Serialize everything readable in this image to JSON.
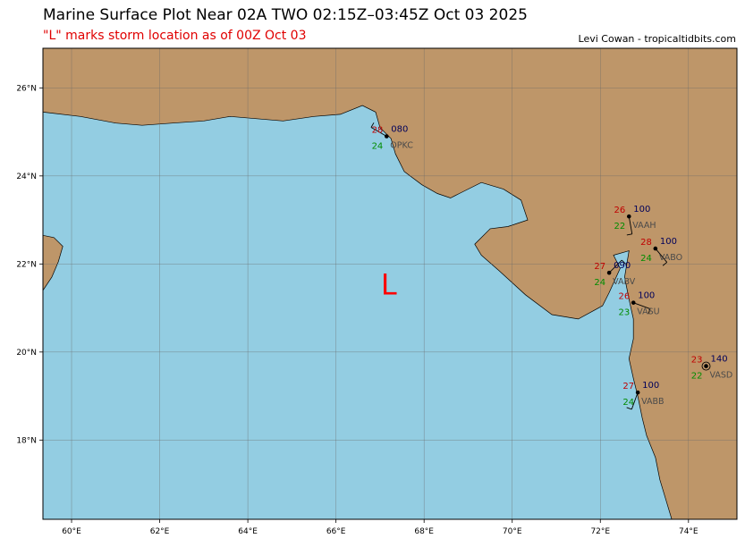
{
  "header": {
    "title": "Marine Surface Plot Near 02A TWO 02:15Z–03:45Z Oct 03 2025",
    "subtitle": "\"L\" marks storm location as of 00Z Oct 03",
    "credit": "Levi Cowan - tropicaltidbits.com"
  },
  "map": {
    "lon_range": [
      59.35,
      75.1
    ],
    "lat_range": [
      16.2,
      26.9
    ],
    "colors": {
      "ocean": "#93cde2",
      "land": "#be9669",
      "grid": "#6a6a6a",
      "temp": "#c00000",
      "dew": "#008c00",
      "pressure": "#00005a"
    },
    "x_ticks": [
      {
        "lon": 60,
        "label": "60°E"
      },
      {
        "lon": 62,
        "label": "62°E"
      },
      {
        "lon": 64,
        "label": "64°E"
      },
      {
        "lon": 66,
        "label": "66°E"
      },
      {
        "lon": 68,
        "label": "68°E"
      },
      {
        "lon": 70,
        "label": "70°E"
      },
      {
        "lon": 72,
        "label": "72°E"
      },
      {
        "lon": 74,
        "label": "74°E"
      }
    ],
    "y_ticks": [
      {
        "lat": 18,
        "label": "18°N"
      },
      {
        "lat": 20,
        "label": "20°N"
      },
      {
        "lat": 22,
        "label": "22°N"
      },
      {
        "lat": 24,
        "label": "24°N"
      },
      {
        "lat": 26,
        "label": "26°N"
      }
    ],
    "storm": {
      "label": "L",
      "lon": 67.2,
      "lat": 21.55,
      "color": "#ff0000"
    },
    "stations": [
      {
        "id": "OPKC",
        "lon": 67.15,
        "lat": 24.9,
        "temp": "28",
        "dew": "24",
        "pressure": "080",
        "wind_dir": 300
      },
      {
        "id": "VAAH",
        "lon": 72.65,
        "lat": 23.08,
        "temp": "26",
        "dew": "22",
        "pressure": "100",
        "wind_dir": 170
      },
      {
        "id": "VABO",
        "lon": 73.25,
        "lat": 22.35,
        "temp": "28",
        "dew": "24",
        "pressure": "100",
        "wind_dir": 140
      },
      {
        "id": "VABV",
        "lon": 72.2,
        "lat": 21.8,
        "temp": "27",
        "dew": "24",
        "pressure": "090",
        "wind_dir": 45
      },
      {
        "id": "VASU",
        "lon": 72.75,
        "lat": 21.12,
        "temp": "26",
        "dew": "23",
        "pressure": "100",
        "wind_dir": 110
      },
      {
        "id": "VASD",
        "lon": 74.4,
        "lat": 19.68,
        "temp": "23",
        "dew": "22",
        "pressure": "140",
        "wind_dir": null
      },
      {
        "id": "VABB",
        "lon": 72.85,
        "lat": 19.08,
        "temp": "27",
        "dew": "24",
        "pressure": "100",
        "wind_dir": 200
      }
    ],
    "land_polygons": [
      [
        [
          59.35,
          25.45
        ],
        [
          60.2,
          25.35
        ],
        [
          61.0,
          25.2
        ],
        [
          61.6,
          25.15
        ],
        [
          62.3,
          25.2
        ],
        [
          63.0,
          25.25
        ],
        [
          63.6,
          25.35
        ],
        [
          64.2,
          25.3
        ],
        [
          64.8,
          25.25
        ],
        [
          65.5,
          25.35
        ],
        [
          66.1,
          25.4
        ],
        [
          66.6,
          25.6
        ],
        [
          66.9,
          25.45
        ],
        [
          67.0,
          25.1
        ],
        [
          67.25,
          24.85
        ],
        [
          67.35,
          24.5
        ],
        [
          67.55,
          24.1
        ],
        [
          67.95,
          23.8
        ],
        [
          68.3,
          23.6
        ],
        [
          68.6,
          23.5
        ],
        [
          68.8,
          23.6
        ],
        [
          69.3,
          23.85
        ],
        [
          69.8,
          23.7
        ],
        [
          70.2,
          23.45
        ],
        [
          70.35,
          23.0
        ],
        [
          69.9,
          22.85
        ],
        [
          69.5,
          22.8
        ],
        [
          69.15,
          22.45
        ],
        [
          69.3,
          22.2
        ],
        [
          69.7,
          21.85
        ],
        [
          70.3,
          21.3
        ],
        [
          70.9,
          20.85
        ],
        [
          71.5,
          20.75
        ],
        [
          72.05,
          21.05
        ],
        [
          72.2,
          21.35
        ],
        [
          72.45,
          21.9
        ],
        [
          72.3,
          22.2
        ],
        [
          72.65,
          22.3
        ],
        [
          72.55,
          21.7
        ],
        [
          72.65,
          21.2
        ],
        [
          72.75,
          20.75
        ],
        [
          72.75,
          20.3
        ],
        [
          72.65,
          19.85
        ],
        [
          72.75,
          19.4
        ],
        [
          72.85,
          19.0
        ],
        [
          72.95,
          18.5
        ],
        [
          73.05,
          18.1
        ],
        [
          73.25,
          17.6
        ],
        [
          73.35,
          17.1
        ],
        [
          73.5,
          16.6
        ],
        [
          73.62,
          16.2
        ],
        [
          75.1,
          16.2
        ],
        [
          75.1,
          26.9
        ],
        [
          59.35,
          26.9
        ]
      ],
      [
        [
          59.35,
          21.4
        ],
        [
          59.55,
          21.7
        ],
        [
          59.7,
          22.05
        ],
        [
          59.8,
          22.4
        ],
        [
          59.6,
          22.6
        ],
        [
          59.35,
          22.65
        ]
      ]
    ]
  }
}
